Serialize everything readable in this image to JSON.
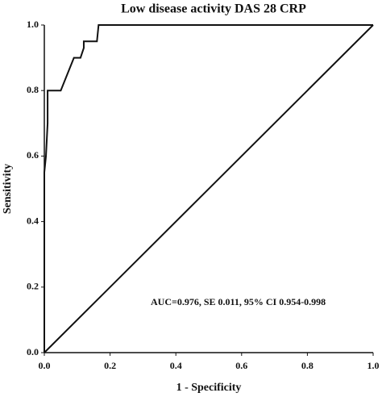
{
  "chart_data": {
    "type": "line",
    "title": "Low disease activity DAS 28 CRP",
    "x_label": "1 - Specificity",
    "y_label": "Sensitivity",
    "annotation": "AUC=0.976, SE 0.011, 95% CI 0.954-0.998",
    "series": [
      {
        "color": "#111111",
        "x": [
          0,
          0,
          0.005,
          0.01,
          0.01,
          0.05,
          0.09,
          0.11,
          0.12,
          0.12,
          0.16,
          0.165,
          1
        ],
        "values": [
          0,
          0.55,
          0.6,
          0.7,
          0.8,
          0.8,
          0.9,
          0.9,
          0.93,
          0.95,
          0.95,
          1,
          1
        ]
      },
      {
        "color": "#111111",
        "x": [
          0,
          1
        ],
        "values": [
          0,
          1
        ]
      }
    ],
    "xlim": [
      0,
      1
    ],
    "ylim": [
      0,
      1
    ],
    "xticks": [
      {
        "value": 0,
        "label": "0.0"
      },
      0.2,
      0.4,
      0.6,
      0.8,
      {
        "value": 1,
        "label": "1.0"
      }
    ],
    "yticks": [
      {
        "value": 0,
        "label": "0.0"
      },
      0.2,
      0.4,
      0.6,
      0.8,
      {
        "value": 1,
        "label": "1.0"
      }
    ]
  }
}
